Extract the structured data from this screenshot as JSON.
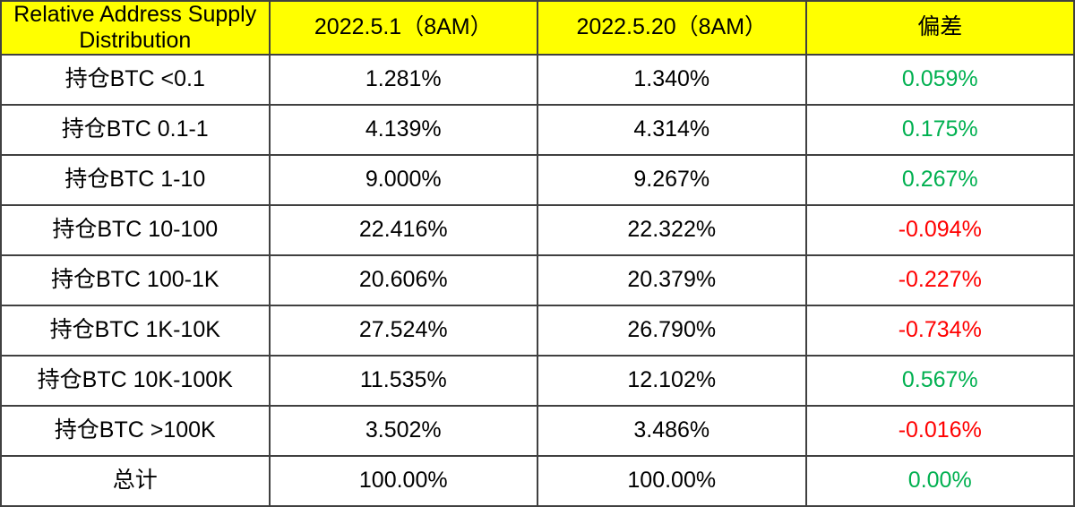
{
  "colors": {
    "header_bg": "#FFFF00",
    "positive": "#00B050",
    "negative": "#FF0000",
    "border": "#404040",
    "text": "#000000"
  },
  "table": {
    "headers": [
      "Relative Address Supply Distribution",
      "2022.5.1（8AM）",
      "2022.5.20（8AM）",
      "偏差"
    ],
    "rows": [
      {
        "label": "持仓BTC <0.1",
        "v1": "1.281%",
        "v2": "1.340%",
        "dev": "0.059%",
        "dev_color": "#00B050"
      },
      {
        "label": "持仓BTC 0.1-1",
        "v1": "4.139%",
        "v2": "4.314%",
        "dev": "0.175%",
        "dev_color": "#00B050"
      },
      {
        "label": "持仓BTC 1-10",
        "v1": "9.000%",
        "v2": "9.267%",
        "dev": "0.267%",
        "dev_color": "#00B050"
      },
      {
        "label": "持仓BTC 10-100",
        "v1": "22.416%",
        "v2": "22.322%",
        "dev": "-0.094%",
        "dev_color": "#FF0000"
      },
      {
        "label": "持仓BTC 100-1K",
        "v1": "20.606%",
        "v2": "20.379%",
        "dev": "-0.227%",
        "dev_color": "#FF0000"
      },
      {
        "label": "持仓BTC 1K-10K",
        "v1": "27.524%",
        "v2": "26.790%",
        "dev": "-0.734%",
        "dev_color": "#FF0000"
      },
      {
        "label": "持仓BTC 10K-100K",
        "v1": "11.535%",
        "v2": "12.102%",
        "dev": "0.567%",
        "dev_color": "#00B050"
      },
      {
        "label": "持仓BTC >100K",
        "v1": "3.502%",
        "v2": "3.486%",
        "dev": "-0.016%",
        "dev_color": "#FF0000"
      },
      {
        "label": "总计",
        "v1": "100.00%",
        "v2": "100.00%",
        "dev": "0.00%",
        "dev_color": "#00B050"
      }
    ]
  },
  "chart_data": {
    "type": "table",
    "title": "Relative Address Supply Distribution",
    "columns": [
      "Relative Address Supply Distribution",
      "2022.5.1（8AM）",
      "2022.5.20（8AM）",
      "偏差"
    ],
    "rows": [
      [
        "持仓BTC <0.1",
        "1.281%",
        "1.340%",
        "0.059%"
      ],
      [
        "持仓BTC 0.1-1",
        "4.139%",
        "4.314%",
        "0.175%"
      ],
      [
        "持仓BTC 1-10",
        "9.000%",
        "9.267%",
        "0.267%"
      ],
      [
        "持仓BTC 10-100",
        "22.416%",
        "22.322%",
        "-0.094%"
      ],
      [
        "持仓BTC 100-1K",
        "20.606%",
        "20.379%",
        "-0.227%"
      ],
      [
        "持仓BTC 1K-10K",
        "27.524%",
        "26.790%",
        "-0.734%"
      ],
      [
        "持仓BTC 10K-100K",
        "11.535%",
        "12.102%",
        "0.567%"
      ],
      [
        "持仓BTC >100K",
        "3.502%",
        "3.486%",
        "-0.016%"
      ],
      [
        "总计",
        "100.00%",
        "100.00%",
        "0.00%"
      ]
    ],
    "notes": "Deviation column colored green (#00B050) for positive/zero, red (#FF0000) for negative"
  }
}
